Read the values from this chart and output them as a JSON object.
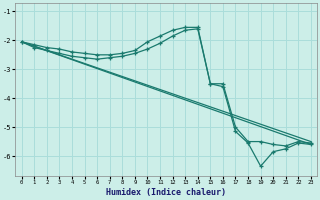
{
  "xlabel": "Humidex (Indice chaleur)",
  "xlim": [
    -0.5,
    23.5
  ],
  "ylim": [
    -6.7,
    -0.7
  ],
  "yticks": [
    -6,
    -5,
    -4,
    -3,
    -2,
    -1
  ],
  "xticks": [
    0,
    1,
    2,
    3,
    4,
    5,
    6,
    7,
    8,
    9,
    10,
    11,
    12,
    13,
    14,
    15,
    16,
    17,
    18,
    19,
    20,
    21,
    22,
    23
  ],
  "bg_color": "#cceee8",
  "grid_color": "#aaddda",
  "line_color": "#1a7a6e",
  "line1_x": [
    0,
    1,
    2,
    3,
    4,
    5,
    6,
    7,
    8,
    9,
    10,
    11,
    12,
    13,
    14,
    15,
    16,
    17,
    18,
    19,
    20,
    21,
    22,
    23
  ],
  "line1_y": [
    -2.05,
    -2.15,
    -2.25,
    -2.3,
    -2.4,
    -2.45,
    -2.5,
    -2.5,
    -2.45,
    -2.35,
    -2.05,
    -1.85,
    -1.65,
    -1.55,
    -1.55,
    -3.5,
    -3.5,
    -5.0,
    -5.5,
    -5.5,
    -5.6,
    -5.65,
    -5.5,
    -5.55
  ],
  "line2_x": [
    0,
    1,
    2,
    3,
    4,
    5,
    6,
    7,
    8,
    9,
    10,
    11,
    12,
    13,
    14,
    15,
    16,
    17,
    18,
    19,
    20,
    21,
    22,
    23
  ],
  "line2_y": [
    -2.05,
    -2.25,
    -2.35,
    -2.45,
    -2.55,
    -2.6,
    -2.65,
    -2.6,
    -2.55,
    -2.45,
    -2.3,
    -2.1,
    -1.85,
    -1.65,
    -1.6,
    -3.5,
    -3.6,
    -5.15,
    -5.55,
    -6.35,
    -5.85,
    -5.75,
    -5.55,
    -5.6
  ],
  "line3_x": [
    0,
    23
  ],
  "line3_y": [
    -2.05,
    -5.5
  ],
  "line4_x": [
    0,
    23
  ],
  "line4_y": [
    -2.05,
    -5.6
  ]
}
